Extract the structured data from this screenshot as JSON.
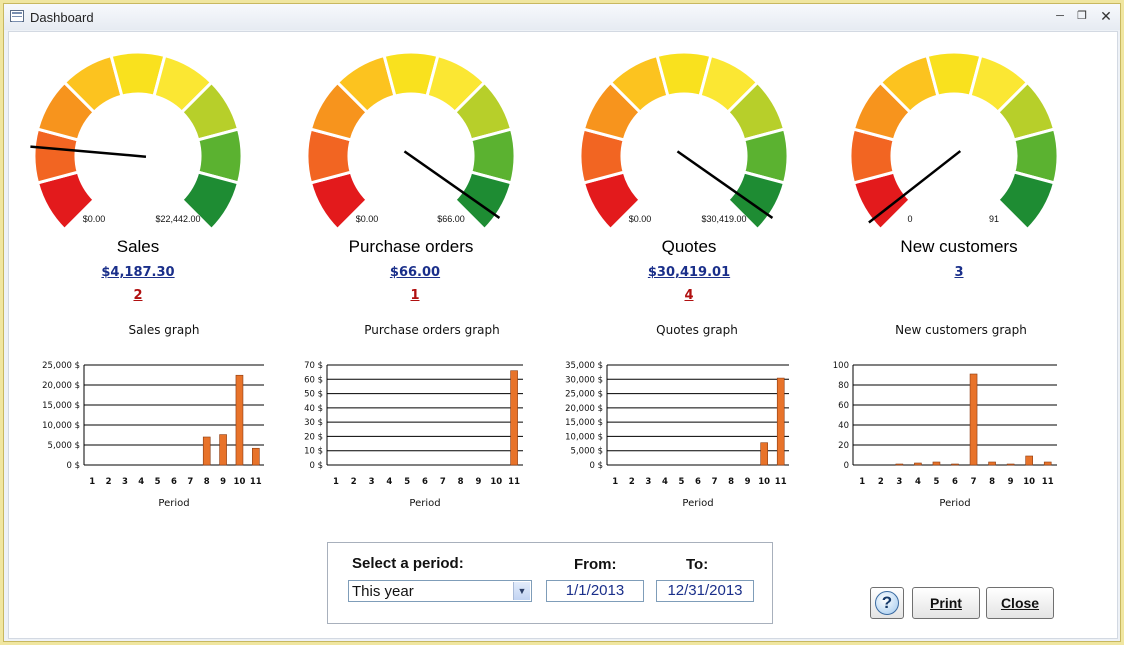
{
  "window": {
    "title": "Dashboard"
  },
  "gauges": [
    {
      "title": "Sales",
      "min_label": "$0.00",
      "max_label": "$22,442.00",
      "value_label": "$4,187.30",
      "count": "2",
      "count_color": "red",
      "needle_angle_deg": 175
    },
    {
      "title": "Purchase orders",
      "min_label": "$0.00",
      "max_label": "$66.00",
      "value_label": "$66.00",
      "count": "1",
      "count_color": "red",
      "needle_angle_deg": 325
    },
    {
      "title": "Quotes",
      "min_label": "$0.00",
      "max_label": "$30,419.00",
      "value_label": "$30,419.01",
      "count": "4",
      "count_color": "red",
      "needle_angle_deg": 325
    },
    {
      "title": "New customers",
      "min_label": "0",
      "max_label": "91",
      "value_label": "3",
      "count": "",
      "count_color": "blue",
      "needle_angle_deg": 218
    }
  ],
  "gauge_colors": [
    "#e31a1c",
    "#f26522",
    "#f7941d",
    "#fcc31f",
    "#f9e11e",
    "#fbe733",
    "#b7cf2a",
    "#5bb230",
    "#1e8c33"
  ],
  "chart_data": [
    {
      "type": "bar",
      "title": "Sales graph",
      "xlabel": "Period",
      "ylabel": "",
      "categories": [
        "1",
        "2",
        "3",
        "4",
        "5",
        "6",
        "7",
        "8",
        "9",
        "10",
        "11"
      ],
      "values": [
        0,
        0,
        0,
        0,
        0,
        0,
        0,
        7000,
        7600,
        22442,
        4187
      ],
      "ylim": [
        0,
        25000
      ],
      "yticks": [
        "25,000 $",
        "20,000 $",
        "15,000 $",
        "10,000 $",
        "5,000 $",
        "0 $"
      ],
      "bar_color": "#e8732a"
    },
    {
      "type": "bar",
      "title": "Purchase orders graph",
      "xlabel": "Period",
      "ylabel": "",
      "categories": [
        "1",
        "2",
        "3",
        "4",
        "5",
        "6",
        "7",
        "8",
        "9",
        "10",
        "11"
      ],
      "values": [
        0,
        0,
        0,
        0,
        0,
        0,
        0,
        0,
        0,
        0,
        66
      ],
      "ylim": [
        0,
        70
      ],
      "yticks": [
        "70 $",
        "60 $",
        "50 $",
        "40 $",
        "30 $",
        "20 $",
        "10 $",
        "0 $"
      ],
      "bar_color": "#e8732a"
    },
    {
      "type": "bar",
      "title": "Quotes graph",
      "xlabel": "Period",
      "ylabel": "",
      "categories": [
        "1",
        "2",
        "3",
        "4",
        "5",
        "6",
        "7",
        "8",
        "9",
        "10",
        "11"
      ],
      "values": [
        0,
        0,
        0,
        0,
        0,
        0,
        0,
        0,
        0,
        7800,
        30419
      ],
      "ylim": [
        0,
        35000
      ],
      "yticks": [
        "35,000 $",
        "30,000 $",
        "25,000 $",
        "20,000 $",
        "15,000 $",
        "10,000 $",
        "5,000 $",
        "0 $"
      ],
      "bar_color": "#e8732a"
    },
    {
      "type": "bar",
      "title": "New customers graph",
      "xlabel": "Period",
      "ylabel": "",
      "categories": [
        "1",
        "2",
        "3",
        "4",
        "5",
        "6",
        "7",
        "8",
        "9",
        "10",
        "11"
      ],
      "values": [
        0,
        0,
        1,
        2,
        3,
        1,
        91,
        3,
        1,
        9,
        3
      ],
      "ylim": [
        0,
        100
      ],
      "yticks": [
        "100",
        "80",
        "60",
        "40",
        "20",
        "0"
      ],
      "bar_color": "#e8732a"
    }
  ],
  "period": {
    "label": "Select a period:",
    "selected": "This year",
    "from_label": "From:",
    "to_label": "To:",
    "from_value": "1/1/2013",
    "to_value": "12/31/2013"
  },
  "buttons": {
    "print": "Print",
    "close": "Close",
    "help": "?"
  }
}
